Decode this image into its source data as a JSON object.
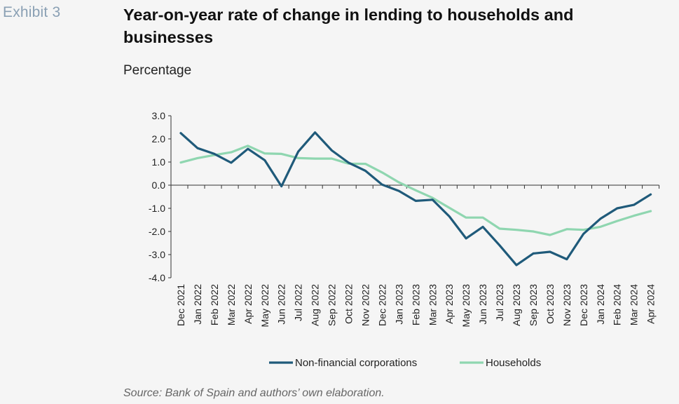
{
  "exhibit_label": "Exhibit 3",
  "title": "Year-on-year rate of change in lending to households and businesses",
  "subtitle": "Percentage",
  "source": "Source: Bank of Spain and authors’ own elaboration.",
  "chart_data": {
    "type": "line",
    "title": "Year-on-year rate of change in lending to households and businesses",
    "ylabel": "Percentage",
    "xlabel": "",
    "ylim": [
      -4.0,
      3.0
    ],
    "yticks": [
      "3.0",
      "2.0",
      "1.0",
      "0.0",
      "-1.0",
      "-2.0",
      "-3.0",
      "-4.0"
    ],
    "grid": false,
    "legend_position": "bottom",
    "categories": [
      "Dec 2021",
      "Jan 2022",
      "Feb 2022",
      "Mar 2022",
      "Apr 2022",
      "May 2022",
      "Jun 2022",
      "Jul 2022",
      "Aug 2022",
      "Sep 2022",
      "Oct 2022",
      "Nov 2022",
      "Dec 2022",
      "Jan 2023",
      "Feb 2023",
      "Mar 2023",
      "Apr 2023",
      "May 2023",
      "Jun 2023",
      "Jul 2023",
      "Aug 2023",
      "Sep 2023",
      "Oct 2023",
      "Nov 2023",
      "Dec 2023",
      "Jan 2024",
      "Feb 2024",
      "Mar 2024",
      "Apr 2024"
    ],
    "series": [
      {
        "name": "Non-financial corporations",
        "color": "#1f5a7a",
        "values": [
          2.25,
          1.6,
          1.35,
          0.97,
          1.57,
          1.08,
          -0.05,
          1.45,
          2.28,
          1.5,
          0.97,
          0.62,
          0.02,
          -0.25,
          -0.68,
          -0.63,
          -1.35,
          -2.3,
          -1.8,
          -2.6,
          -3.45,
          -2.95,
          -2.88,
          -3.2,
          -2.1,
          -1.45,
          -1.0,
          -0.85,
          -0.4
        ]
      },
      {
        "name": "Households",
        "color": "#8fd6b0",
        "values": [
          0.98,
          1.17,
          1.3,
          1.42,
          1.7,
          1.37,
          1.35,
          1.17,
          1.15,
          1.15,
          0.93,
          0.92,
          0.55,
          0.12,
          -0.22,
          -0.55,
          -0.98,
          -1.4,
          -1.4,
          -1.88,
          -1.93,
          -2.0,
          -2.15,
          -1.9,
          -1.93,
          -1.8,
          -1.55,
          -1.32,
          -1.12
        ]
      }
    ]
  }
}
